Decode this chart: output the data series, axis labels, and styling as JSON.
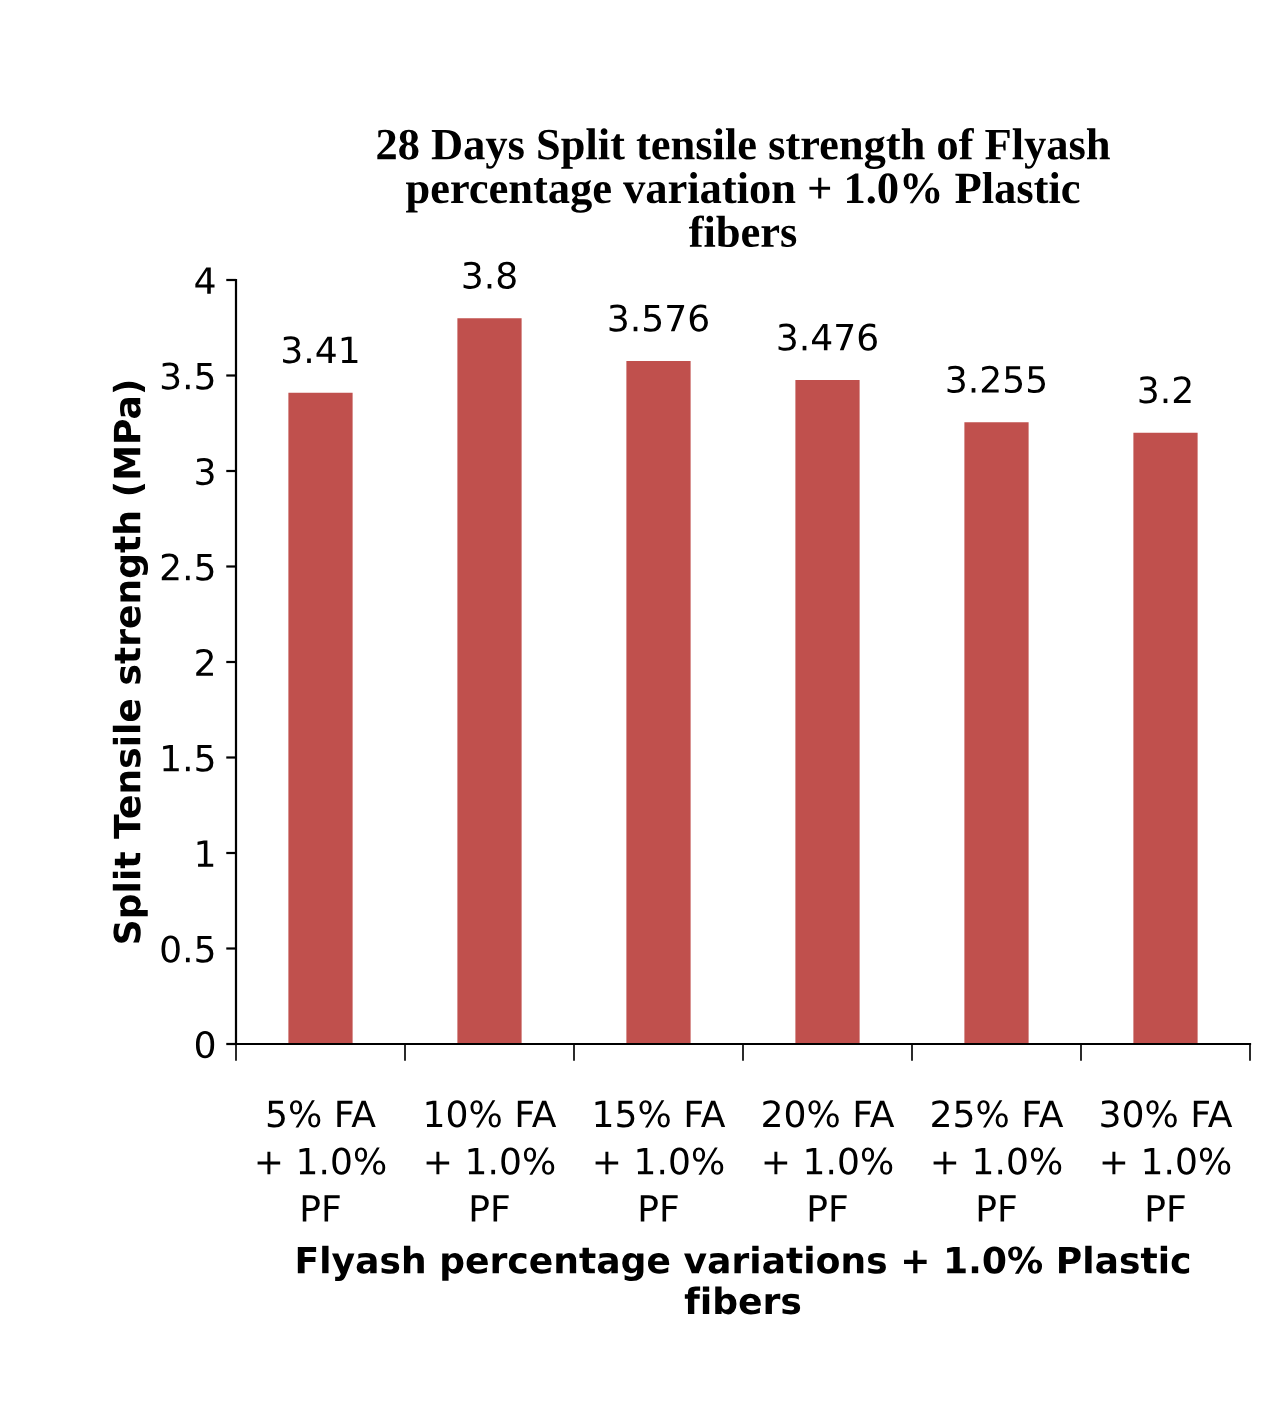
{
  "chart_data": {
    "type": "bar",
    "title": "28 Days Split tensile strength of Flyash\npercentage variation + 1.0% Plastic\nfibers",
    "xlabel": "Flyash percentage variations + 1.0% Plastic\nfibers",
    "ylabel": "Split Tensile strength (MPa)",
    "categories": [
      "5% FA\n+ 1.0%\nPF",
      "10% FA\n+ 1.0%\nPF",
      "15% FA\n+ 1.0%\nPF",
      "20% FA\n+ 1.0%\nPF",
      "25% FA\n+ 1.0%\nPF",
      "30% FA\n+ 1.0%\nPF"
    ],
    "values": [
      3.41,
      3.8,
      3.576,
      3.476,
      3.255,
      3.2
    ],
    "color": "#c0504d",
    "ylim": [
      0,
      4
    ],
    "yticks": [
      0,
      0.5,
      1,
      1.5,
      2,
      2.5,
      3,
      3.5,
      4
    ],
    "data_labels": true,
    "grid": false,
    "legend": false
  }
}
